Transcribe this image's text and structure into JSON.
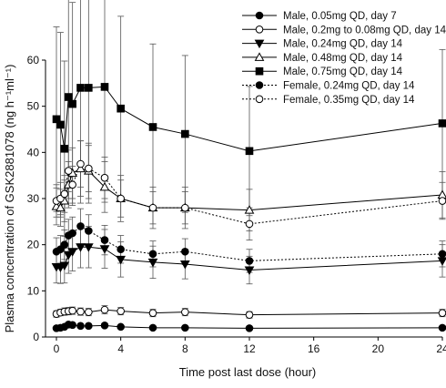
{
  "chart_data": {
    "type": "line",
    "title": "",
    "xlabel": "Time post last dose (hour)",
    "ylabel": "Plasma concentration of GSK2881078 (ng h⁻¹ml⁻¹)",
    "xlim": [
      -1,
      24
    ],
    "ylim": [
      0,
      60
    ],
    "xticks": [
      0,
      4,
      8,
      12,
      16,
      20,
      24
    ],
    "yticks": [
      0,
      10,
      20,
      30,
      40,
      50,
      60
    ],
    "grid": false,
    "legend_position": "top-right",
    "series": [
      {
        "name": "Male, 0.05mg QD,  day 7",
        "marker": "filled-circle",
        "line": "solid",
        "color": "#000000",
        "x": [
          0,
          0.25,
          0.5,
          0.75,
          1,
          1.5,
          2,
          3,
          4,
          6,
          8,
          12,
          24
        ],
        "y": [
          1.9,
          2.0,
          2.2,
          2.7,
          2.6,
          2.4,
          2.4,
          2.5,
          2.2,
          2.0,
          2.0,
          1.9,
          2.0
        ],
        "err": [
          0.3,
          0.3,
          0.3,
          0.4,
          0.4,
          0.3,
          0.3,
          0.3,
          0.3,
          0.3,
          0.3,
          0.3,
          0.3
        ]
      },
      {
        "name": "Male, 0.2mg to 0.08mg QD, day 14",
        "marker": "open-circle",
        "line": "solid",
        "color": "#000000",
        "x": [
          0,
          0.25,
          0.5,
          0.75,
          1,
          1.5,
          2,
          3,
          4,
          6,
          8,
          12,
          24
        ],
        "y": [
          5.0,
          5.3,
          5.5,
          5.6,
          5.7,
          5.5,
          5.4,
          5.9,
          5.6,
          5.2,
          5.4,
          4.8,
          5.2
        ],
        "err": [
          0.7,
          0.7,
          0.8,
          0.8,
          0.8,
          0.8,
          0.8,
          0.9,
          0.8,
          0.8,
          0.8,
          0.7,
          0.8
        ]
      },
      {
        "name": "Male, 0.24mg QD, day 14",
        "marker": "filled-triangle-down",
        "line": "solid",
        "color": "#000000",
        "x": [
          0,
          0.25,
          0.5,
          0.75,
          1,
          1.5,
          2,
          3,
          4,
          6,
          8,
          12,
          24
        ],
        "y": [
          15.2,
          15.1,
          15.5,
          17.8,
          18.5,
          19.5,
          19.5,
          19.1,
          16.8,
          16.2,
          15.8,
          14.5,
          16.5
        ],
        "err": [
          3.5,
          3.5,
          3.8,
          4.0,
          4.2,
          4.5,
          4.5,
          4.2,
          3.8,
          3.5,
          3.2,
          3.0,
          3.5
        ]
      },
      {
        "name": "Male, 0.48mg QD, day 14",
        "marker": "open-triangle-up",
        "line": "solid",
        "color": "#000000",
        "x": [
          0,
          0.25,
          0.5,
          0.75,
          1,
          1.5,
          2,
          3,
          4,
          6,
          8,
          12,
          24
        ],
        "y": [
          28.3,
          28.0,
          29.5,
          33.0,
          35.5,
          36.5,
          36.0,
          32.5,
          30.0,
          28.0,
          28.0,
          27.5,
          30.8
        ],
        "err": [
          4.0,
          4.0,
          4.5,
          5.0,
          5.5,
          6.0,
          6.0,
          5.5,
          5.0,
          4.5,
          4.5,
          4.5,
          5.0
        ]
      },
      {
        "name": "Male, 0.75mg QD, day 14",
        "marker": "filled-square",
        "line": "solid",
        "color": "#000000",
        "x": [
          0,
          0.25,
          0.5,
          0.75,
          1,
          1.5,
          2,
          3,
          4,
          6,
          8,
          12,
          24
        ],
        "y": [
          47.2,
          46.0,
          40.8,
          52.0,
          50.5,
          54.0,
          54.0,
          54.2,
          49.5,
          45.5,
          44.0,
          40.3,
          46.3
        ],
        "err": [
          20.0,
          20.0,
          19.0,
          22.0,
          22.0,
          25.0,
          25.0,
          25.0,
          20.0,
          18.0,
          17.0,
          14.0,
          16.0
        ]
      },
      {
        "name": "Female, 0.24mg QD, day 14",
        "marker": "filled-circle",
        "line": "dotted",
        "color": "#000000",
        "x": [
          0,
          0.25,
          0.5,
          0.75,
          1,
          1.5,
          2,
          3,
          4,
          6,
          8,
          12,
          24
        ],
        "y": [
          18.5,
          19.0,
          20.0,
          22.0,
          22.5,
          24.0,
          23.0,
          21.0,
          19.0,
          18.0,
          18.5,
          16.5,
          18.0
        ],
        "err": [
          3.0,
          3.0,
          3.2,
          3.5,
          3.5,
          3.8,
          3.5,
          3.2,
          3.0,
          2.8,
          2.8,
          2.5,
          2.8
        ]
      },
      {
        "name": "Female, 0.35mg QD, day 14",
        "marker": "open-circle",
        "line": "dotted",
        "color": "#000000",
        "x": [
          0,
          0.25,
          0.5,
          0.75,
          1,
          1.5,
          2,
          3,
          4,
          6,
          8,
          12,
          24
        ],
        "y": [
          29.5,
          30.0,
          31.0,
          36.0,
          33.0,
          37.5,
          36.5,
          34.5,
          30.0,
          28.0,
          28.0,
          24.5,
          29.5
        ],
        "err": [
          3.5,
          3.5,
          4.0,
          4.5,
          4.0,
          5.0,
          5.0,
          4.5,
          4.0,
          3.5,
          3.5,
          3.5,
          4.0
        ]
      }
    ]
  }
}
